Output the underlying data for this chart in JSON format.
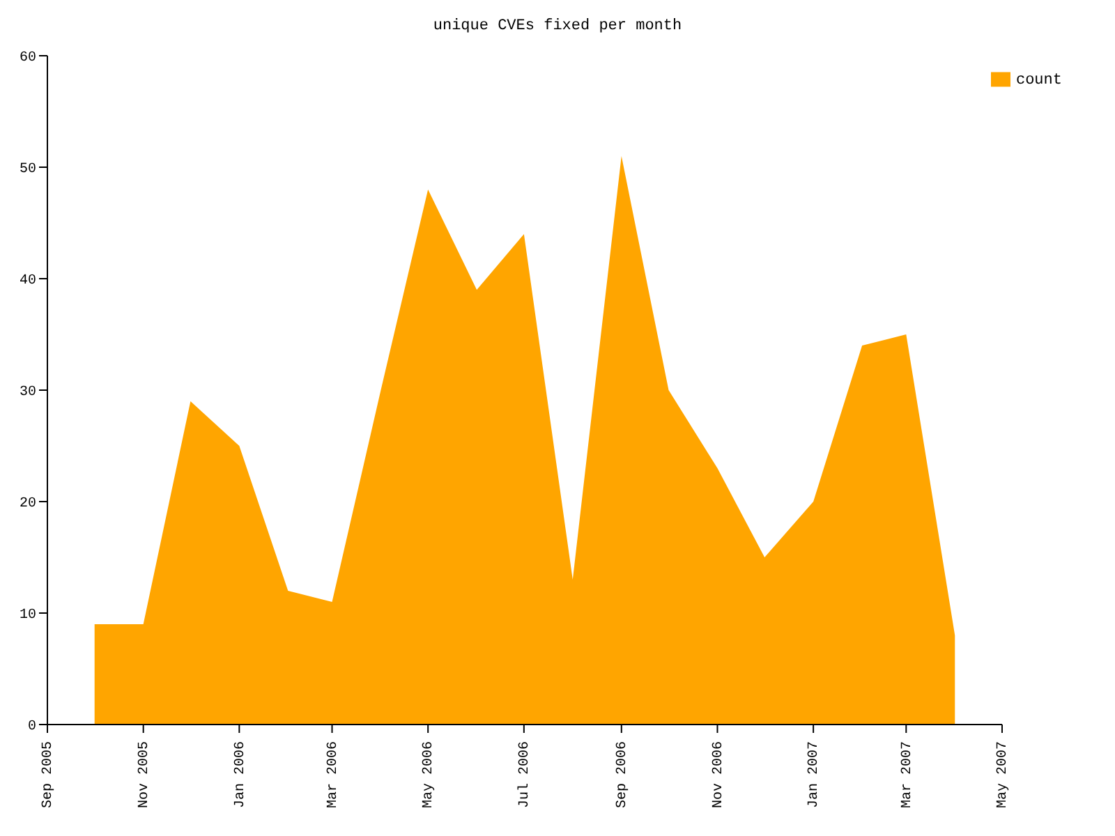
{
  "chart_data": {
    "type": "area",
    "title": "unique CVEs fixed per month",
    "x": [
      "2005-10",
      "2005-11",
      "2005-12",
      "2006-01",
      "2006-02",
      "2006-03",
      "2006-04",
      "2006-05",
      "2006-06",
      "2006-07",
      "2006-08",
      "2006-09",
      "2006-10",
      "2006-11",
      "2006-12",
      "2007-01",
      "2007-02",
      "2007-03",
      "2007-04"
    ],
    "series": [
      {
        "name": "count",
        "color": "#ffa500",
        "values": [
          9,
          9,
          29,
          25,
          12,
          11,
          30,
          48,
          39,
          44,
          13,
          51,
          30,
          23,
          15,
          20,
          34,
          35,
          8
        ]
      }
    ],
    "xlim": [
      "2005-09",
      "2007-05"
    ],
    "xticks": [
      {
        "value": "2005-09",
        "label": "Sep 2005"
      },
      {
        "value": "2005-11",
        "label": "Nov 2005"
      },
      {
        "value": "2006-01",
        "label": "Jan 2006"
      },
      {
        "value": "2006-03",
        "label": "Mar 2006"
      },
      {
        "value": "2006-05",
        "label": "May 2006"
      },
      {
        "value": "2006-07",
        "label": "Jul 2006"
      },
      {
        "value": "2006-09",
        "label": "Sep 2006"
      },
      {
        "value": "2006-11",
        "label": "Nov 2006"
      },
      {
        "value": "2007-01",
        "label": "Jan 2007"
      },
      {
        "value": "2007-03",
        "label": "Mar 2007"
      },
      {
        "value": "2007-05",
        "label": "May 2007"
      }
    ],
    "ylim": [
      0,
      60
    ],
    "yticks": [
      0,
      10,
      20,
      30,
      40,
      50,
      60
    ],
    "legend": "top right"
  }
}
